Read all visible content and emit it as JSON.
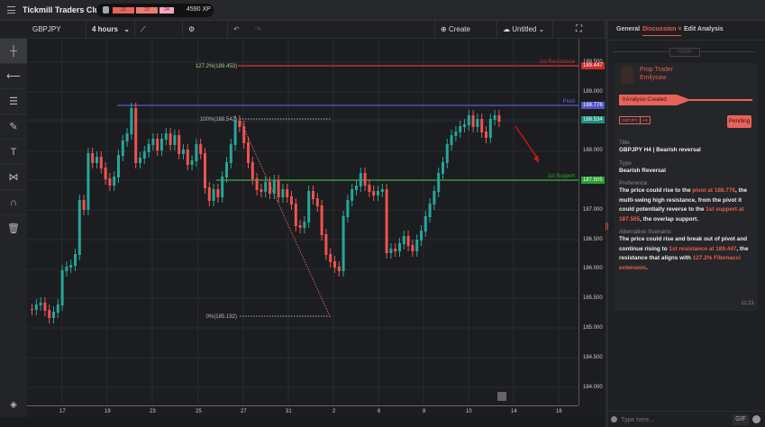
{
  "app": {
    "title": "Tickmill Traders Club",
    "xp": {
      "segments": [
        "22",
        "23",
        "24"
      ],
      "label": "4590 XP"
    }
  },
  "toolbar": {
    "symbol": "GBPJPY",
    "interval": "4 hours",
    "indicators": "Indicators",
    "settings": "Settings",
    "create": "Create Analysis",
    "save": "Untitled"
  },
  "tools": [
    "crosshair-icon",
    "horizontal-line-icon",
    "fib-icon",
    "brush-icon",
    "text-icon",
    "pattern-icon",
    "magnet-icon",
    "trash-icon"
  ],
  "chart_data": {
    "type": "candlestick",
    "symbol": "GBPJPY",
    "interval": "4 hours",
    "yaxis": {
      "ticks": [
        "189.500",
        "189.000",
        "188.500",
        "188.000",
        "187.500",
        "187.000",
        "186.500",
        "186.000",
        "185.500",
        "185.000",
        "184.500",
        "184.000"
      ]
    },
    "xaxis": {
      "ticks": [
        "17",
        "19",
        "23",
        "25",
        "27",
        "31",
        "2",
        "6",
        "8",
        "10",
        "14",
        "16"
      ]
    },
    "price_labels": [
      {
        "value": "189.447",
        "color": "#e03030"
      },
      {
        "value": "188.776",
        "color": "#5a5ad6"
      },
      {
        "value": "188.534",
        "color": "#26a69a"
      },
      {
        "value": "187.505",
        "color": "#2eaa3a"
      }
    ],
    "lines": [
      {
        "name": "1st Resistance",
        "value": 189.447,
        "color": "#d9362f"
      },
      {
        "name": "Pivot",
        "value": 188.776,
        "color": "#5a5ad6"
      },
      {
        "name": "1st Support",
        "value": 187.505,
        "color": "#3cb043"
      }
    ],
    "fib": [
      {
        "label": "127.2%(189.453)"
      },
      {
        "label": "100%(188.542)"
      },
      {
        "label": "0%(185.192)"
      }
    ]
  },
  "panel": {
    "tabs": [
      "General",
      "Discussion",
      "Edit Analysis"
    ],
    "close": "×",
    "date": "TODAY",
    "author_role": "Prop Trader",
    "author_name": "Emilysaw",
    "status_bar": "Analysis Created",
    "tags": [
      "GBPJPY",
      "H4"
    ],
    "status": "Pending",
    "title_label": "Title",
    "title": "GBPJPY H4 | Bearish reversal",
    "type_label": "Type",
    "type": "Bearish Reversal",
    "pref_label": "Preference:",
    "pref": [
      "The price could rise to the ",
      "pivot at 188.776",
      ", the multi-swing high resistance, from the pivot it could potentially reverse to the ",
      "1st support at 187.505",
      ", the overlap support."
    ],
    "alt_label": "Alternative Scenario:",
    "alt": [
      "The price could rise and break out of pivot and continue rising to ",
      "1st resistance at 189.447",
      ", the resistance that aligns with ",
      "127.2% Fibonacci extension",
      "."
    ],
    "time": "11:21",
    "chat_placeholder": "Type here...",
    "gif": "GIF"
  }
}
